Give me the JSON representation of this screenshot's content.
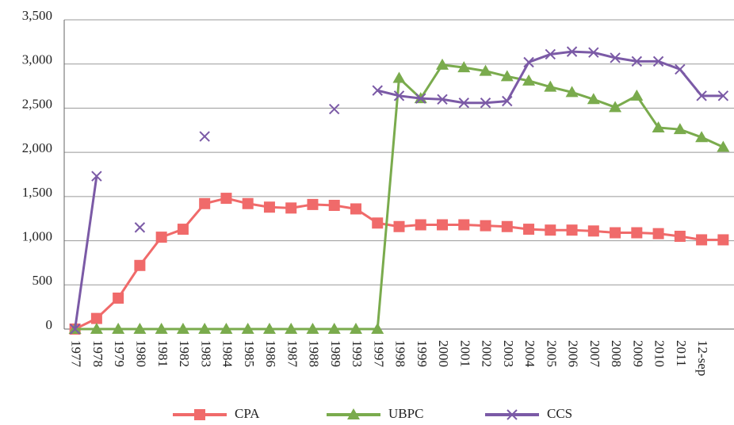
{
  "chart_data": {
    "type": "line",
    "categories": [
      "1977",
      "1978",
      "1979",
      "1980",
      "1981",
      "1982",
      "1983",
      "1984",
      "1985",
      "1986",
      "1987",
      "1988",
      "1989",
      "1993",
      "1997",
      "1998",
      "1999",
      "2000",
      "2001",
      "2002",
      "2003",
      "2004",
      "2005",
      "2006",
      "2007",
      "2008",
      "2009",
      "2010",
      "2011",
      "12-sep",
      null
    ],
    "series": [
      {
        "name": "CPA",
        "color": "#f06a6a",
        "marker": "square",
        "values": [
          0,
          120,
          350,
          720,
          1040,
          1130,
          1420,
          1480,
          1420,
          1380,
          1370,
          1410,
          1400,
          1360,
          1200,
          1160,
          1180,
          1180,
          1180,
          1170,
          1160,
          1130,
          1120,
          1120,
          1110,
          1090,
          1090,
          1080,
          1050,
          1010,
          1010
        ]
      },
      {
        "name": "UBPC",
        "color": "#7aab4d",
        "marker": "triangle",
        "values": [
          0,
          0,
          0,
          0,
          0,
          0,
          0,
          0,
          0,
          0,
          0,
          0,
          0,
          0,
          0,
          2840,
          2610,
          2990,
          2960,
          2920,
          2860,
          2810,
          2740,
          2680,
          2600,
          2510,
          2640,
          2280,
          2260,
          2170,
          2060
        ]
      },
      {
        "name": "CCS",
        "color": "#7b5aa6",
        "marker": "x",
        "values": [
          0,
          1730,
          null,
          1150,
          null,
          null,
          2180,
          null,
          null,
          null,
          null,
          null,
          2490,
          null,
          2700,
          2640,
          2610,
          2600,
          2560,
          2560,
          2580,
          3020,
          3110,
          3140,
          3130,
          3070,
          3030,
          3030,
          2940,
          2640,
          2640
        ]
      }
    ],
    "ylim": [
      0,
      3500
    ],
    "yticks": [
      0,
      500,
      {
        "value": 1000,
        "label": "1,000"
      },
      {
        "value": 1500,
        "label": "1,500"
      },
      {
        "value": 2000,
        "label": "2,000"
      },
      {
        "value": 2500,
        "label": "2,500"
      },
      {
        "value": 3000,
        "label": "3,000"
      },
      {
        "value": 3500,
        "label": "3,500"
      }
    ],
    "grid": true,
    "legend": "bottom"
  }
}
